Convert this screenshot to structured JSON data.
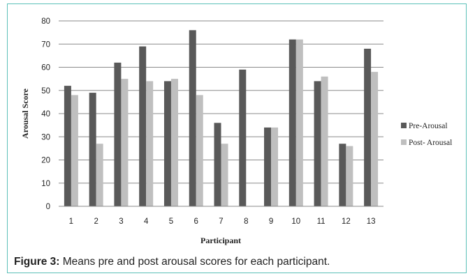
{
  "chart_data": {
    "type": "bar",
    "categories": [
      "1",
      "2",
      "3",
      "4",
      "5",
      "6",
      "7",
      "8",
      "9",
      "10",
      "11",
      "12",
      "13"
    ],
    "series": [
      {
        "name": "Pre-Arousal",
        "values": [
          52,
          49,
          62,
          69,
          54,
          76,
          36,
          59,
          34,
          72,
          54,
          27,
          68
        ],
        "color": "#595959"
      },
      {
        "name": "Post- Arousal",
        "values": [
          48,
          27,
          55,
          54,
          55,
          48,
          27,
          0,
          34,
          72,
          56,
          26,
          58
        ],
        "color": "#bfbfbf"
      }
    ],
    "xlabel": "Participant",
    "ylabel": "Arousal Score",
    "ylim": [
      0,
      80
    ],
    "yticks": [
      0,
      10,
      20,
      30,
      40,
      50,
      60,
      70,
      80
    ],
    "grid": true,
    "legend_position": "right"
  },
  "caption": {
    "label": "Figure 3:",
    "text": " Means pre and post arousal scores for each participant."
  }
}
